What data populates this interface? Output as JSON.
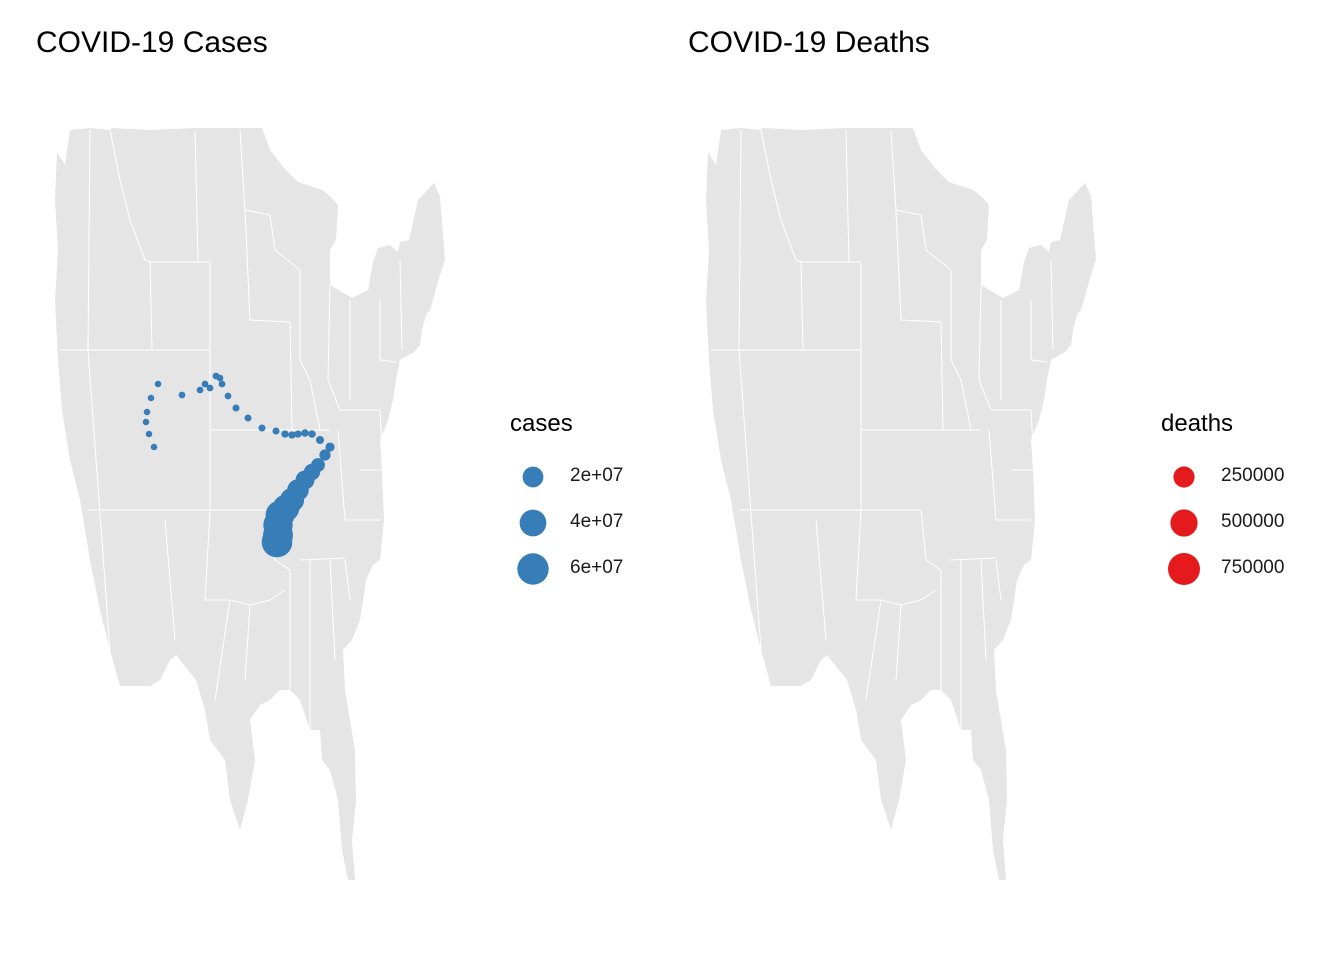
{
  "panels": [
    {
      "title": "COVID-19 Cases",
      "color": "#377EB8",
      "legend": {
        "title": "cases",
        "breaks": [
          "2e+07",
          "4e+07",
          "6e+07"
        ]
      },
      "size_values": [
        20000000,
        40000000,
        60000000
      ],
      "size_max": 75000000
    },
    {
      "title": "COVID-19 Deaths",
      "color": "#E41A1C",
      "legend": {
        "title": "deaths",
        "breaks": [
          "250000",
          "500000",
          "750000"
        ]
      },
      "size_values": [
        250000,
        500000,
        750000
      ],
      "size_max": 900000
    }
  ],
  "map": {
    "land_color": "#E5E5E5",
    "border_color": "#FFFFFF"
  }
}
